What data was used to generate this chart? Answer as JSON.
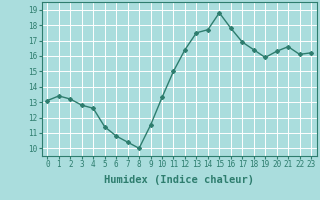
{
  "x": [
    0,
    1,
    2,
    3,
    4,
    5,
    6,
    7,
    8,
    9,
    10,
    11,
    12,
    13,
    14,
    15,
    16,
    17,
    18,
    19,
    20,
    21,
    22,
    23
  ],
  "y": [
    13.1,
    13.4,
    13.2,
    12.8,
    12.6,
    11.4,
    10.8,
    10.4,
    10.0,
    11.5,
    13.3,
    15.0,
    16.4,
    17.5,
    17.7,
    18.8,
    17.8,
    16.9,
    16.4,
    15.9,
    16.3,
    16.6,
    16.1,
    16.2
  ],
  "xlabel": "Humidex (Indice chaleur)",
  "ylim": [
    9.5,
    19.5
  ],
  "xlim": [
    -0.5,
    23.5
  ],
  "yticks": [
    10,
    11,
    12,
    13,
    14,
    15,
    16,
    17,
    18,
    19
  ],
  "xticks": [
    0,
    1,
    2,
    3,
    4,
    5,
    6,
    7,
    8,
    9,
    10,
    11,
    12,
    13,
    14,
    15,
    16,
    17,
    18,
    19,
    20,
    21,
    22,
    23
  ],
  "line_color": "#2e7d6e",
  "marker": "D",
  "marker_size": 2.0,
  "bg_color": "#aadddd",
  "grid_color": "#ffffff",
  "tick_label_fontsize": 5.5,
  "xlabel_fontsize": 7.5,
  "line_width": 1.0
}
